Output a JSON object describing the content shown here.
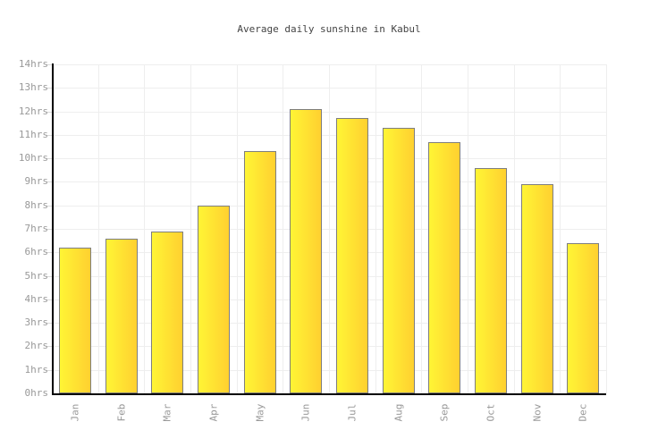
{
  "chart_data": {
    "type": "bar",
    "title": "Average daily sunshine in Kabul",
    "categories": [
      "Jan",
      "Feb",
      "Mar",
      "Apr",
      "May",
      "Jun",
      "Jul",
      "Aug",
      "Sep",
      "Oct",
      "Nov",
      "Dec"
    ],
    "values": [
      6.2,
      6.6,
      6.9,
      8.0,
      10.3,
      12.1,
      11.7,
      11.3,
      10.7,
      9.6,
      8.9,
      6.4
    ],
    "unit": "hrs",
    "xlabel": "",
    "ylabel": "",
    "ylim": [
      0,
      14
    ],
    "ytick_step": 1,
    "ytick_labels": [
      "0hrs",
      "1hrs",
      "2hrs",
      "3hrs",
      "4hrs",
      "5hrs",
      "6hrs",
      "7hrs",
      "8hrs",
      "9hrs",
      "10hrs",
      "11hrs",
      "12hrs",
      "13hrs",
      "14hrs"
    ],
    "grid": true,
    "legend": "none",
    "colors": {
      "bar_gradient_start": "#fff535",
      "bar_gradient_end": "#ffd030",
      "bar_border": "#7e7e7e",
      "grid": "#eeeeee",
      "axis": "#000000",
      "tick": "#d9d9d9",
      "label": "#999999",
      "title": "#444444",
      "background": "#ffffff"
    }
  }
}
